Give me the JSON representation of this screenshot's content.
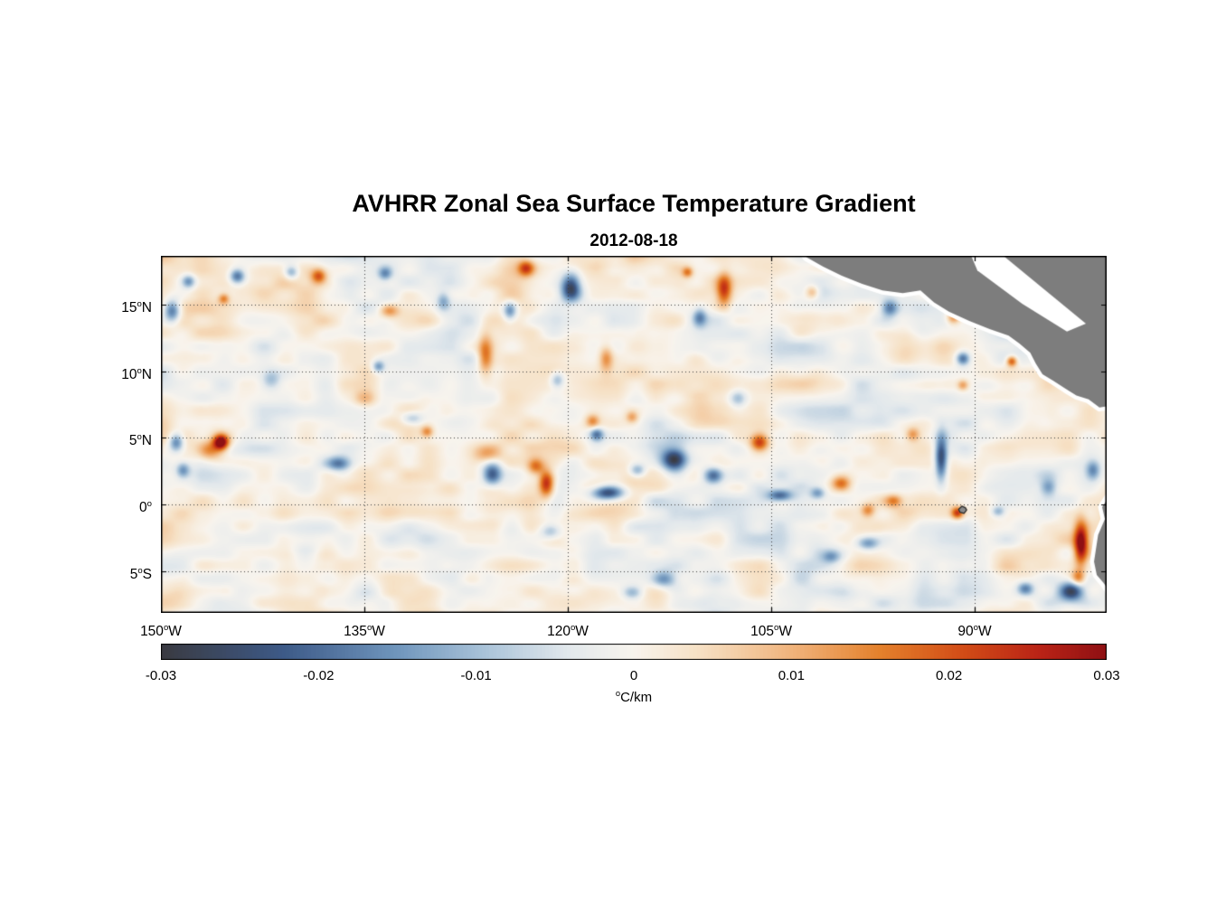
{
  "title": "AVHRR Zonal Sea Surface Temperature Gradient",
  "subtitle": "2012-08-18",
  "chart_data": {
    "type": "heatmap",
    "description_title": "AVHRR Zonal Sea Surface Temperature Gradient",
    "date": "2012-08-18",
    "projection": {
      "lon_range": [
        -150,
        -80.27
      ],
      "lat_range": [
        -8.16,
        18.7
      ]
    },
    "x_ticks": [
      {
        "deg": "150",
        "hem": "W",
        "lon": -150
      },
      {
        "deg": "135",
        "hem": "W",
        "lon": -135
      },
      {
        "deg": "120",
        "hem": "W",
        "lon": -120
      },
      {
        "deg": "105",
        "hem": "W",
        "lon": -105
      },
      {
        "deg": "90",
        "hem": "W",
        "lon": -90
      }
    ],
    "y_ticks": [
      {
        "deg": "15",
        "hem": "N",
        "lat": 15
      },
      {
        "deg": "10",
        "hem": "N",
        "lat": 10
      },
      {
        "deg": "5",
        "hem": "N",
        "lat": 5
      },
      {
        "deg": "0",
        "hem": "",
        "lat": 0
      },
      {
        "deg": "5",
        "hem": "S",
        "lat": -5
      }
    ],
    "colorbar": {
      "min": -0.03,
      "max": 0.03,
      "tick_labels": [
        "-0.03",
        "-0.02",
        "-0.01",
        "0",
        "0.01",
        "0.02",
        "0.03"
      ],
      "unit": {
        "sup": "o",
        "text": "C/km"
      },
      "stops": [
        [
          0.0,
          "#3a3a41"
        ],
        [
          0.13,
          "#3d5a88"
        ],
        [
          0.25,
          "#7096bd"
        ],
        [
          0.34,
          "#a8c2d8"
        ],
        [
          0.43,
          "#e2e8ec"
        ],
        [
          0.5,
          "#f8f4ed"
        ],
        [
          0.57,
          "#f6e0c4"
        ],
        [
          0.67,
          "#f0b27a"
        ],
        [
          0.76,
          "#e4812c"
        ],
        [
          0.85,
          "#d24b16"
        ],
        [
          0.93,
          "#b92316"
        ],
        [
          1.0,
          "#8f1013"
        ]
      ]
    },
    "land_color": "#7d7d7d",
    "coast_halo_color": "#ffffff",
    "grid": {
      "dash": [
        1,
        3
      ],
      "color": "#3c3c3c"
    },
    "noise": {
      "seed": 11,
      "octaves": [
        {
          "scale_deg": 2.3,
          "amp": 0.0052
        },
        {
          "scale_deg": 0.95,
          "amp": 0.0032
        }
      ]
    },
    "features_lon_lat_amp_sigx_sigy": [
      [
        -145.6,
        4.7,
        0.032,
        0.55,
        0.55
      ],
      [
        -146.4,
        4.1,
        0.014,
        0.9,
        0.7
      ],
      [
        -121.6,
        1.6,
        0.026,
        0.55,
        1.0
      ],
      [
        -122.4,
        2.9,
        0.016,
        0.6,
        0.6
      ],
      [
        -126.1,
        11.3,
        0.017,
        0.55,
        1.5
      ],
      [
        -130.4,
        5.5,
        0.014,
        0.45,
        0.45
      ],
      [
        -123.1,
        17.8,
        0.02,
        0.6,
        0.6
      ],
      [
        -118.2,
        6.3,
        0.013,
        0.5,
        0.5
      ],
      [
        -115.3,
        6.6,
        0.011,
        0.45,
        0.45
      ],
      [
        -108.5,
        16.2,
        0.021,
        0.55,
        1.2
      ],
      [
        -105.9,
        4.7,
        0.022,
        0.65,
        0.65
      ],
      [
        -99.9,
        1.6,
        0.018,
        0.7,
        0.55
      ],
      [
        -97.9,
        -0.4,
        0.013,
        0.5,
        0.5
      ],
      [
        -96.0,
        0.3,
        0.013,
        0.6,
        0.45
      ],
      [
        -91.3,
        -0.6,
        0.022,
        0.45,
        0.45
      ],
      [
        -82.2,
        -2.9,
        0.03,
        0.5,
        1.6
      ],
      [
        -82.4,
        -5.5,
        0.016,
        0.5,
        0.6
      ],
      [
        -87.3,
        10.8,
        0.022,
        0.4,
        0.4
      ],
      [
        -90.9,
        9.0,
        0.012,
        0.4,
        0.4
      ],
      [
        -91.6,
        14.1,
        0.015,
        0.5,
        0.5
      ],
      [
        -138.4,
        17.2,
        0.018,
        0.55,
        0.55
      ],
      [
        -145.4,
        15.5,
        0.014,
        0.4,
        0.4
      ],
      [
        -133.2,
        14.6,
        0.014,
        0.7,
        0.5
      ],
      [
        -126.0,
        3.8,
        0.01,
        1.0,
        0.7
      ],
      [
        -111.2,
        17.5,
        0.015,
        0.4,
        0.4
      ],
      [
        -94.6,
        5.3,
        0.012,
        0.5,
        0.5
      ],
      [
        -102.0,
        16.0,
        0.012,
        0.5,
        0.5
      ],
      [
        -117.2,
        11.0,
        0.013,
        0.5,
        0.9
      ],
      [
        -135.0,
        8.0,
        0.009,
        0.8,
        0.6
      ],
      [
        -149.2,
        14.6,
        -0.022,
        0.6,
        0.8
      ],
      [
        -148.0,
        16.8,
        -0.016,
        0.5,
        0.5
      ],
      [
        -144.4,
        17.2,
        -0.02,
        0.55,
        0.55
      ],
      [
        -140.4,
        17.5,
        -0.014,
        0.5,
        0.5
      ],
      [
        -119.8,
        16.4,
        -0.026,
        0.7,
        1.0
      ],
      [
        -124.3,
        14.6,
        -0.017,
        0.5,
        0.7
      ],
      [
        -136.9,
        3.1,
        -0.018,
        0.9,
        0.55
      ],
      [
        -125.6,
        2.3,
        -0.024,
        0.7,
        0.8
      ],
      [
        -117.1,
        0.9,
        -0.028,
        1.2,
        0.55
      ],
      [
        -112.2,
        3.4,
        -0.028,
        0.9,
        0.9
      ],
      [
        -109.3,
        2.2,
        -0.02,
        0.7,
        0.6
      ],
      [
        -104.4,
        0.7,
        -0.02,
        0.9,
        0.45
      ],
      [
        -101.6,
        0.9,
        -0.014,
        0.55,
        0.45
      ],
      [
        -92.5,
        3.5,
        -0.026,
        0.45,
        1.7
      ],
      [
        -96.3,
        14.8,
        -0.017,
        0.6,
        0.6
      ],
      [
        -90.9,
        11.0,
        -0.02,
        0.5,
        0.5
      ],
      [
        -84.6,
        1.3,
        -0.014,
        0.6,
        0.6
      ],
      [
        -82.9,
        -6.5,
        -0.026,
        0.9,
        0.7
      ],
      [
        -86.3,
        -6.3,
        -0.017,
        0.6,
        0.5
      ],
      [
        -97.9,
        -2.9,
        -0.015,
        0.8,
        0.5
      ],
      [
        -100.6,
        -3.9,
        -0.012,
        0.7,
        0.5
      ],
      [
        -112.9,
        -5.6,
        -0.015,
        0.9,
        0.6
      ],
      [
        -115.3,
        -6.6,
        -0.012,
        0.7,
        0.5
      ],
      [
        -148.9,
        4.7,
        -0.02,
        0.55,
        0.7
      ],
      [
        -148.4,
        2.6,
        -0.015,
        0.5,
        0.6
      ],
      [
        -134.0,
        10.4,
        -0.015,
        0.45,
        0.45
      ],
      [
        -120.8,
        9.4,
        -0.012,
        0.5,
        0.6
      ],
      [
        -117.9,
        5.3,
        -0.017,
        0.5,
        0.5
      ],
      [
        -114.9,
        2.6,
        -0.015,
        0.6,
        0.5
      ],
      [
        -110.3,
        14.1,
        -0.014,
        0.5,
        0.7
      ],
      [
        -88.3,
        -0.5,
        -0.012,
        0.5,
        0.4
      ],
      [
        -81.3,
        2.6,
        -0.014,
        0.5,
        0.7
      ],
      [
        -141.9,
        9.4,
        -0.01,
        0.7,
        0.7
      ],
      [
        -131.5,
        6.5,
        -0.012,
        0.8,
        0.5
      ],
      [
        -121.3,
        -2.0,
        -0.012,
        0.8,
        0.6
      ],
      [
        -133.5,
        17.4,
        -0.014,
        0.5,
        0.5
      ],
      [
        -129.2,
        15.3,
        -0.012,
        0.5,
        0.7
      ],
      [
        -107.5,
        8.0,
        -0.01,
        0.6,
        0.6
      ]
    ],
    "land_polygons": [
      {
        "name": "central-america",
        "points": [
          [
            -103.0,
            19.5
          ],
          [
            -102.4,
            18.6
          ],
          [
            -101.2,
            17.9
          ],
          [
            -99.8,
            17.2
          ],
          [
            -98.3,
            16.6
          ],
          [
            -96.8,
            16.1
          ],
          [
            -95.3,
            15.9
          ],
          [
            -94.0,
            16.1
          ],
          [
            -93.0,
            15.2
          ],
          [
            -91.9,
            14.5
          ],
          [
            -90.4,
            13.8
          ],
          [
            -88.9,
            13.2
          ],
          [
            -87.5,
            12.7
          ],
          [
            -86.7,
            12.1
          ],
          [
            -85.9,
            11.4
          ],
          [
            -85.5,
            10.6
          ],
          [
            -85.0,
            9.8
          ],
          [
            -84.2,
            9.3
          ],
          [
            -83.3,
            8.7
          ],
          [
            -82.5,
            8.2
          ],
          [
            -81.6,
            7.9
          ],
          [
            -80.8,
            7.3
          ],
          [
            -80.1,
            7.4
          ],
          [
            -79.3,
            8.2
          ],
          [
            -78.5,
            8.0
          ],
          [
            -78.5,
            19.5
          ]
        ]
      },
      {
        "name": "south-america",
        "points": [
          [
            -79.2,
            1.2
          ],
          [
            -80.1,
            0.6
          ],
          [
            -80.6,
            -0.2
          ],
          [
            -80.4,
            -1.1
          ],
          [
            -80.9,
            -2.3
          ],
          [
            -81.2,
            -4.3
          ],
          [
            -81.0,
            -5.3
          ],
          [
            -80.5,
            -5.9
          ],
          [
            -79.9,
            -6.8
          ],
          [
            -79.4,
            -7.9
          ],
          [
            -78.9,
            -8.6
          ],
          [
            -78.5,
            -8.6
          ],
          [
            -78.5,
            1.2
          ]
        ]
      }
    ],
    "mask_stripes": [
      [
        [
          -90.3,
          18.8
        ],
        [
          -88.0,
          18.8
        ],
        [
          -81.8,
          13.6
        ],
        [
          -83.2,
          13.0
        ],
        [
          -86.5,
          15.1
        ],
        [
          -89.8,
          17.6
        ]
      ]
    ],
    "islands": [
      {
        "name": "galapagos",
        "lon": -90.9,
        "lat": -0.42,
        "scale": 0.32
      }
    ]
  }
}
